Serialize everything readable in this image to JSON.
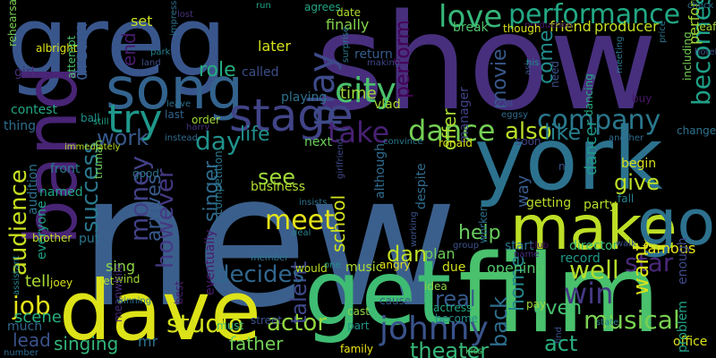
{
  "words": [
    {
      "text": "new",
      "color": "#3b5f8c"
    },
    {
      "text": "show",
      "color": "#472f7d"
    },
    {
      "text": "greg",
      "color": "#39568c"
    },
    {
      "text": "film",
      "color": "#4ac16d"
    },
    {
      "text": "york",
      "color": "#2c728e"
    },
    {
      "text": "dave",
      "color": "#dde318"
    },
    {
      "text": "get",
      "color": "#3fbc73"
    },
    {
      "text": "band",
      "color": "#482475"
    },
    {
      "text": "song",
      "color": "#33638d"
    },
    {
      "text": "make",
      "color": "#bddf26"
    },
    {
      "text": "go",
      "color": "#2d718e"
    },
    {
      "text": "stage",
      "color": "#414487"
    },
    {
      "text": "try",
      "color": "#1f988b"
    },
    {
      "text": "play",
      "color": "#3e4a89"
    },
    {
      "text": "city",
      "color": "#4ac16d"
    },
    {
      "text": "love",
      "color": "#35b779"
    },
    {
      "text": "performance",
      "color": "#22a884"
    },
    {
      "text": "becomes",
      "color": "#1fa088"
    },
    {
      "text": "dance",
      "color": "#75d054"
    },
    {
      "text": "take",
      "color": "#482173"
    },
    {
      "text": "company",
      "color": "#2a788e"
    },
    {
      "text": "johnny",
      "color": "#3a538b"
    },
    {
      "text": "money",
      "color": "#424086"
    },
    {
      "text": "audience",
      "color": "#c8e020"
    },
    {
      "text": "meet",
      "color": "#e5e419"
    },
    {
      "text": "success",
      "color": "#2a788e"
    },
    {
      "text": "however",
      "color": "#443983"
    },
    {
      "text": "day",
      "color": "#20928c"
    },
    {
      "text": "work",
      "color": "#38588c"
    },
    {
      "text": "job",
      "color": "#e5e419"
    },
    {
      "text": "studio",
      "color": "#d2e21b"
    },
    {
      "text": "actor",
      "color": "#95d840"
    },
    {
      "text": "win",
      "color": "#443983"
    },
    {
      "text": "musical",
      "color": "#7ad151"
    },
    {
      "text": "well",
      "color": "#b5de2b"
    },
    {
      "text": "star",
      "color": "#482878"
    },
    {
      "text": "want",
      "color": "#d8e219"
    },
    {
      "text": "back",
      "color": "#2e6e8e"
    },
    {
      "text": "also",
      "color": "#b8de29"
    },
    {
      "text": "like",
      "color": "#277f8e"
    },
    {
      "text": "give",
      "color": "#bddf26"
    },
    {
      "text": "talent",
      "color": "#3f4889"
    },
    {
      "text": "decides",
      "color": "#31668e"
    },
    {
      "text": "theater",
      "color": "#35b779"
    },
    {
      "text": "father",
      "color": "#73d056"
    },
    {
      "text": "help",
      "color": "#67cc5c"
    },
    {
      "text": "school",
      "color": "#d0e11c"
    },
    {
      "text": "dan",
      "color": "#c0df25"
    },
    {
      "text": "real",
      "color": "#375a8c"
    },
    {
      "text": "home",
      "color": "#24868e"
    },
    {
      "text": "even",
      "color": "#46c06f"
    },
    {
      "text": "act",
      "color": "#29af7f"
    },
    {
      "text": "see",
      "color": "#a0da39"
    },
    {
      "text": "life",
      "color": "#218f8d"
    },
    {
      "text": "singer",
      "color": "#2f6c8e"
    },
    {
      "text": "come",
      "color": "#228c8d"
    },
    {
      "text": "perform",
      "color": "#440154"
    },
    {
      "text": "movie",
      "color": "#38598c"
    },
    {
      "text": "offer",
      "color": "#aadc32"
    },
    {
      "text": "time",
      "color": "#a0da39"
    },
    {
      "text": "dream",
      "color": "#38598c"
    },
    {
      "text": "end",
      "color": "#481b6d"
    },
    {
      "text": "role",
      "color": "#26ad81"
    },
    {
      "text": "arrives",
      "color": "#38598c"
    },
    {
      "text": "lead",
      "color": "#3b528b"
    },
    {
      "text": "singing",
      "color": "#32b67a"
    },
    {
      "text": "sing",
      "color": "#8bd646"
    },
    {
      "text": "scene",
      "color": "#29af7f"
    },
    {
      "text": "tell",
      "color": "#a8db34"
    },
    {
      "text": "set",
      "color": "#c8e020"
    },
    {
      "text": "later",
      "color": "#d5e21a"
    },
    {
      "text": "finally",
      "color": "#84d44b"
    },
    {
      "text": "way",
      "color": "#375b8d"
    },
    {
      "text": "dancer",
      "color": "#1e9b8a"
    },
    {
      "text": "begin",
      "color": "#d8e219"
    },
    {
      "text": "party",
      "color": "#b5de2b"
    },
    {
      "text": "getting",
      "color": "#b8de29"
    },
    {
      "text": "famous",
      "color": "#eae51a"
    },
    {
      "text": "enough",
      "color": "#3e4a89"
    },
    {
      "text": "friend",
      "color": "#cde11d"
    },
    {
      "text": "producer",
      "color": "#c2df23"
    },
    {
      "text": "business",
      "color": "#b0dd2f"
    },
    {
      "text": "performing",
      "color": "#a5db36"
    },
    {
      "text": "opening",
      "color": "#52c569"
    },
    {
      "text": "music",
      "color": "#aadc32"
    },
    {
      "text": "due",
      "color": "#d0e11c"
    },
    {
      "text": "plan",
      "color": "#6ccd5a"
    },
    {
      "text": "start",
      "color": "#2a768e"
    },
    {
      "text": "record",
      "color": "#1e9b8a"
    },
    {
      "text": "director",
      "color": "#3dbc74"
    },
    {
      "text": "office",
      "color": "#dae319"
    },
    {
      "text": "problem",
      "color": "#1fa187"
    },
    {
      "text": "mr",
      "color": "#2c728e"
    },
    {
      "text": "eventually",
      "color": "#481a6c"
    },
    {
      "text": "put",
      "color": "#2a788e"
    },
    {
      "text": "named",
      "color": "#20a386"
    },
    {
      "text": "front",
      "color": "#2a788e"
    },
    {
      "text": "everyone",
      "color": "#1fa187"
    },
    {
      "text": "audition",
      "color": "#2c728e"
    },
    {
      "text": "contest",
      "color": "#22a785"
    },
    {
      "text": "girl",
      "color": "#472d7b"
    },
    {
      "text": "thing",
      "color": "#2e6e8e"
    },
    {
      "text": "much",
      "color": "#31688e"
    },
    {
      "text": "next",
      "color": "#6ccd5a"
    },
    {
      "text": "playing",
      "color": "#2d718e"
    },
    {
      "text": "called",
      "color": "#3c4f8a"
    },
    {
      "text": "order",
      "color": "#a2da37"
    },
    {
      "text": "last",
      "color": "#32648e"
    },
    {
      "text": "ball",
      "color": "#21918c"
    },
    {
      "text": "manager",
      "color": "#414487"
    },
    {
      "text": "return",
      "color": "#365c8d"
    },
    {
      "text": "break",
      "color": "#4ec36b"
    },
    {
      "text": "agrees",
      "color": "#22a785"
    },
    {
      "text": "date",
      "color": "#b0dd2f"
    },
    {
      "text": "run",
      "color": "#20a386"
    },
    {
      "text": "lost",
      "color": "#46327e"
    },
    {
      "text": "despite",
      "color": "#2f6c8e"
    },
    {
      "text": "although",
      "color": "#2f6b8e"
    },
    {
      "text": "vlad",
      "color": "#a8db34"
    },
    {
      "text": "ronald",
      "color": "#d8e219"
    },
    {
      "text": "soon",
      "color": "#3f4788"
    },
    {
      "text": "idea",
      "color": "#8bd646"
    },
    {
      "text": "actress",
      "color": "#22a884"
    },
    {
      "text": "become",
      "color": "#21918c"
    },
    {
      "text": "part",
      "color": "#20928c"
    },
    {
      "text": "cast",
      "color": "#8fd744"
    },
    {
      "text": "cause",
      "color": "#38598c"
    },
    {
      "text": "angry",
      "color": "#e7e419"
    },
    {
      "text": "street",
      "color": "#3b528b"
    },
    {
      "text": "must",
      "color": "#3dbc74"
    },
    {
      "text": "family",
      "color": "#ece51b"
    },
    {
      "text": "kiss",
      "color": "#52c569"
    },
    {
      "text": "pay",
      "color": "#a0da39"
    },
    {
      "text": "find",
      "color": "#3a548c"
    },
    {
      "text": "wind",
      "color": "#a2da37"
    },
    {
      "text": "let",
      "color": "#b0dd2f"
    },
    {
      "text": "rehearsal",
      "color": "#7ad151"
    },
    {
      "text": "albright",
      "color": "#dde318"
    },
    {
      "text": "attempt",
      "color": "#4ac16d"
    },
    {
      "text": "joey",
      "color": "#d5e21a"
    },
    {
      "text": "brother",
      "color": "#c2df23"
    },
    {
      "text": "assistant",
      "color": "#25848e"
    },
    {
      "text": "number",
      "color": "#2f6c8e"
    },
    {
      "text": "meanwhile",
      "color": "#472a7a"
    },
    {
      "text": "winning",
      "color": "#2c718e"
    },
    {
      "text": "best",
      "color": "#482071"
    },
    {
      "text": "member",
      "color": "#2a768e"
    },
    {
      "text": "deal",
      "color": "#26818e"
    },
    {
      "text": "would",
      "color": "#bddf26"
    },
    {
      "text": "one",
      "color": "#21918c"
    },
    {
      "text": "group",
      "color": "#3b528b"
    },
    {
      "text": "worker",
      "color": "#2d718e"
    },
    {
      "text": "working",
      "color": "#3b528b"
    },
    {
      "text": "competition",
      "color": "#2a788e"
    },
    {
      "text": "good",
      "color": "#2c728e"
    },
    {
      "text": "truman",
      "color": "#6ece58"
    },
    {
      "text": "immediately",
      "color": "#b8de29"
    },
    {
      "text": "still",
      "color": "#20a386"
    },
    {
      "text": "harry",
      "color": "#46327e"
    },
    {
      "text": "instead",
      "color": "#2f6c8e"
    },
    {
      "text": "park",
      "color": "#25838e"
    },
    {
      "text": "land",
      "color": "#3c4f8a"
    },
    {
      "text": "impressed",
      "color": "#2d718e"
    },
    {
      "text": "surprise",
      "color": "#2a778e"
    },
    {
      "text": "making",
      "color": "#3f4889"
    },
    {
      "text": "girlfriend",
      "color": "#3e4a89"
    },
    {
      "text": "convince",
      "color": "#2a788e"
    },
    {
      "text": "insists",
      "color": "#2d718e"
    },
    {
      "text": "another",
      "color": "#2f6c8e"
    },
    {
      "text": "state",
      "color": "#26818e"
    },
    {
      "text": "club",
      "color": "#471365"
    },
    {
      "text": "walk",
      "color": "#3b528b"
    },
    {
      "text": "name",
      "color": "#472c7a"
    },
    {
      "text": "including",
      "color": "#75d054"
    },
    {
      "text": "change",
      "color": "#2c728e"
    },
    {
      "text": "buy",
      "color": "#48186a"
    },
    {
      "text": "meeting",
      "color": "#2a778e"
    },
    {
      "text": "hotel",
      "color": "#3b528b"
    },
    {
      "text": "leaf",
      "color": "#a8db34"
    },
    {
      "text": "check",
      "color": "#2c718e"
    },
    {
      "text": "production",
      "color": "#481b6d"
    },
    {
      "text": "though",
      "color": "#d8e219"
    },
    {
      "text": "call",
      "color": "#38598c"
    },
    {
      "text": "eggsy",
      "color": "#2f6c8e"
    },
    {
      "text": "need",
      "color": "#3a548c"
    },
    {
      "text": "ask",
      "color": "#3b528b"
    },
    {
      "text": "his",
      "color": "#21918c"
    },
    {
      "text": "dancing",
      "color": "#26ad81"
    },
    {
      "text": "n",
      "color": "#3a548c"
    },
    {
      "text": "fall",
      "color": "#25838e"
    },
    {
      "text": "leave",
      "color": "#2c728e"
    },
    {
      "text": "price",
      "color": "#2a768e"
    }
  ]
}
